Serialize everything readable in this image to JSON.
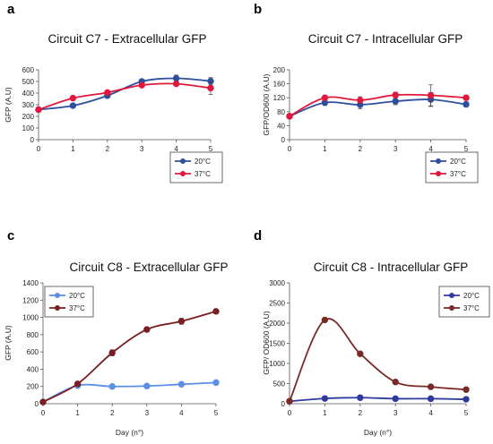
{
  "chart_data": [
    {
      "type": "line",
      "letter": "a",
      "title": "Circuit C7 - Extracellular GFP",
      "ylabel": "GFP (A.U)",
      "xlabel": "",
      "x": [
        0,
        1,
        2,
        3,
        4,
        5
      ],
      "xticks": [
        0,
        1,
        2,
        3,
        4,
        5
      ],
      "xlim": [
        0,
        5
      ],
      "ylim": [
        0,
        600
      ],
      "yticks": [
        0,
        100,
        200,
        300,
        400,
        500,
        600
      ],
      "legend_position": "bottom-right",
      "series": [
        {
          "name": "20°C",
          "color": "#2e4fa0",
          "values": [
            258,
            292,
            378,
            500,
            527,
            503
          ],
          "errors": [
            0,
            0,
            12,
            18,
            28,
            30
          ]
        },
        {
          "name": "37°C",
          "color": "#e0183c",
          "values": [
            258,
            357,
            405,
            468,
            480,
            443
          ],
          "errors": [
            0,
            0,
            0,
            0,
            15,
            55
          ]
        }
      ]
    },
    {
      "type": "line",
      "letter": "b",
      "title": "Circuit C7 - Intracellular GFP",
      "ylabel": "GFP/OD600 (A.U)",
      "xlabel": "",
      "x": [
        0,
        1,
        2,
        3,
        4,
        5
      ],
      "xticks": [
        0,
        1,
        2,
        3,
        4,
        5
      ],
      "xlim": [
        0,
        5
      ],
      "ylim": [
        0,
        200
      ],
      "yticks": [
        0,
        40,
        80,
        120,
        160,
        200
      ],
      "legend_position": "bottom-right",
      "series": [
        {
          "name": "20°C",
          "color": "#2e4fa0",
          "values": [
            67,
            106,
            100,
            110,
            115,
            101
          ],
          "errors": [
            0,
            8,
            12,
            10,
            20,
            7
          ]
        },
        {
          "name": "37°C",
          "color": "#e0183c",
          "values": [
            67,
            120,
            113,
            128,
            127,
            120
          ],
          "errors": [
            0,
            5,
            10,
            8,
            30,
            7
          ]
        }
      ]
    },
    {
      "type": "line",
      "letter": "c",
      "title": "Circuit C8 - Extracellular GFP",
      "ylabel": "GFP (A.U)",
      "xlabel": "Day (n°)",
      "x": [
        0,
        1,
        2,
        3,
        4,
        5
      ],
      "xticks": [
        0,
        1,
        2,
        3,
        4,
        5
      ],
      "xlim": [
        0,
        5
      ],
      "ylim": [
        0,
        1400
      ],
      "yticks": [
        0,
        200,
        400,
        600,
        800,
        1000,
        1200,
        1400
      ],
      "ytick_labels": [
        "0",
        "200",
        "400",
        "600",
        "800",
        "1000",
        "1200",
        "1400"
      ],
      "legend_position": "top-left",
      "series": [
        {
          "name": "20°C",
          "color": "#5b8ee6",
          "values": [
            20,
            210,
            200,
            205,
            225,
            245
          ],
          "errors": [
            0,
            0,
            0,
            0,
            0,
            20
          ]
        },
        {
          "name": "37°C",
          "color": "#7a1e22",
          "values": [
            20,
            230,
            590,
            860,
            955,
            1070
          ],
          "errors": [
            0,
            15,
            35,
            25,
            35,
            15
          ]
        }
      ]
    },
    {
      "type": "line",
      "letter": "d",
      "title": "Circuit C8 - Intracellular GFP",
      "ylabel": "GFP/ OD600 (A.U)",
      "xlabel": "Day (n°)",
      "x": [
        0,
        1,
        2,
        3,
        4,
        5
      ],
      "xticks": [
        0,
        1,
        2,
        3,
        4,
        5
      ],
      "xlim": [
        0,
        5
      ],
      "ylim": [
        0,
        3000
      ],
      "yticks": [
        0,
        500,
        1000,
        1500,
        2000,
        2500,
        3000
      ],
      "legend_position": "top-right",
      "series": [
        {
          "name": "20°C",
          "color": "#2e3a9c",
          "values": [
            60,
            130,
            150,
            125,
            125,
            110
          ],
          "errors": [
            0,
            0,
            0,
            0,
            0,
            0
          ]
        },
        {
          "name": "37°C",
          "color": "#7a2a26",
          "values": [
            60,
            2080,
            1240,
            540,
            420,
            350
          ],
          "errors": [
            0,
            20,
            20,
            20,
            15,
            15
          ]
        }
      ]
    }
  ]
}
